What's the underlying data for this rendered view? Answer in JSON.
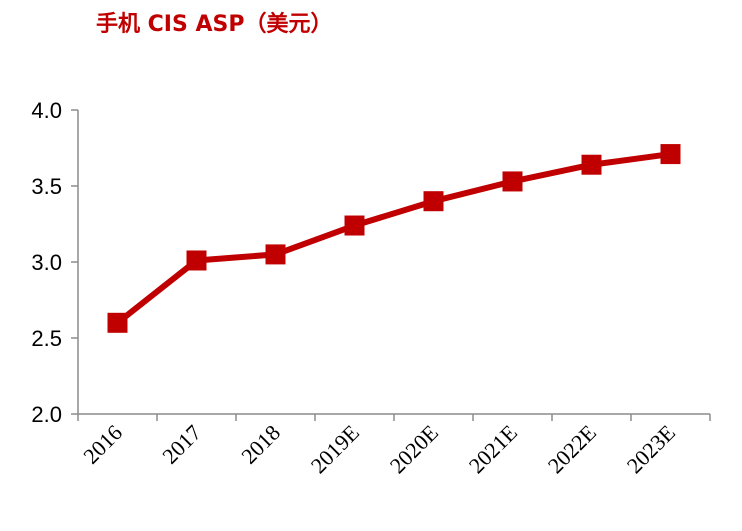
{
  "chart_data": {
    "type": "line",
    "title": "手机 CIS ASP（美元）",
    "categories": [
      "2016",
      "2017",
      "2018",
      "2019E",
      "2020E",
      "2021E",
      "2022E",
      "2023E"
    ],
    "series": [
      {
        "values": [
          2.6,
          3.01,
          3.05,
          3.24,
          3.4,
          3.53,
          3.64,
          3.71
        ]
      }
    ],
    "ylim": [
      2.0,
      4.0
    ],
    "yticks": [
      "2.0",
      "2.5",
      "3.0",
      "3.5",
      "4.0"
    ],
    "grid": false,
    "line_color": "#c00000",
    "marker": "square"
  }
}
